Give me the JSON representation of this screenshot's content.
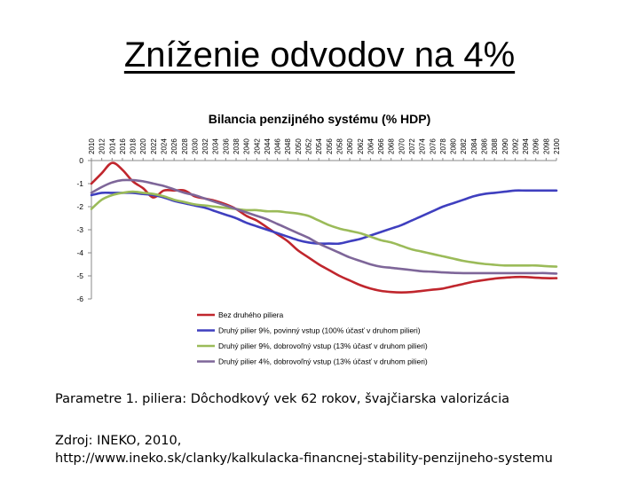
{
  "slide": {
    "title": "Zníženie odvodov na 4%",
    "caption1": "Parametre 1. piliera: Dôchodkový vek 62 rokov, švajčiarska valorizácia",
    "source_line1": "Zdroj: INEKO, 2010,",
    "source_line2": "http://www.ineko.sk/clanky/kalkulacka-financnej-stability-penzijneho-systemu"
  },
  "chart_data": {
    "type": "line",
    "title": "Bilancia penzijného systému (% HDP)",
    "xlabel": "",
    "ylabel": "",
    "x": [
      2010,
      2012,
      2014,
      2016,
      2018,
      2020,
      2022,
      2024,
      2026,
      2028,
      2030,
      2032,
      2034,
      2036,
      2038,
      2040,
      2042,
      2044,
      2046,
      2048,
      2050,
      2052,
      2054,
      2056,
      2058,
      2060,
      2062,
      2064,
      2066,
      2068,
      2070,
      2072,
      2074,
      2076,
      2078,
      2080,
      2082,
      2084,
      2086,
      2088,
      2090,
      2092,
      2094,
      2096,
      2098,
      2100
    ],
    "x_tick_labels": [
      "2010",
      "2012",
      "2014",
      "2016",
      "2018",
      "2020",
      "2022",
      "2024",
      "2026",
      "2028",
      "2030",
      "2032",
      "2034",
      "2036",
      "2038",
      "2040",
      "2042",
      "2044",
      "2046",
      "2048",
      "2050",
      "2052",
      "2054",
      "2056",
      "2058",
      "2060",
      "2062",
      "2064",
      "2066",
      "2068",
      "2070",
      "2072",
      "2074",
      "2076",
      "2078",
      "2080",
      "2082",
      "2084",
      "2086",
      "2088",
      "2090",
      "2092",
      "2094",
      "2096",
      "2098",
      "2100"
    ],
    "x_axis_position": "top",
    "ylim": [
      -6,
      0
    ],
    "y_ticks": [
      0,
      -1,
      -2,
      -3,
      -4,
      -5,
      -6
    ],
    "grid": false,
    "legend_position": "bottom",
    "series": [
      {
        "name": "Bez druhého piliera",
        "color": "#C0262D",
        "values": [
          -1.0,
          -0.55,
          -0.1,
          -0.4,
          -0.9,
          -1.2,
          -1.6,
          -1.3,
          -1.3,
          -1.3,
          -1.55,
          -1.65,
          -1.75,
          -1.9,
          -2.1,
          -2.4,
          -2.6,
          -2.9,
          -3.2,
          -3.5,
          -3.9,
          -4.2,
          -4.5,
          -4.75,
          -5.0,
          -5.2,
          -5.4,
          -5.55,
          -5.65,
          -5.7,
          -5.72,
          -5.7,
          -5.65,
          -5.6,
          -5.55,
          -5.45,
          -5.35,
          -5.25,
          -5.18,
          -5.12,
          -5.08,
          -5.05,
          -5.05,
          -5.08,
          -5.1,
          -5.1
        ]
      },
      {
        "name": "Druhý pilier 9%, povinný vstup (100% účasť v druhom pilieri)",
        "color": "#3F3FBF",
        "values": [
          -1.5,
          -1.4,
          -1.4,
          -1.4,
          -1.4,
          -1.45,
          -1.5,
          -1.6,
          -1.75,
          -1.85,
          -1.95,
          -2.05,
          -2.2,
          -2.35,
          -2.5,
          -2.7,
          -2.85,
          -3.0,
          -3.15,
          -3.3,
          -3.45,
          -3.55,
          -3.6,
          -3.6,
          -3.6,
          -3.5,
          -3.4,
          -3.25,
          -3.1,
          -2.95,
          -2.8,
          -2.6,
          -2.4,
          -2.2,
          -2.0,
          -1.85,
          -1.7,
          -1.55,
          -1.45,
          -1.4,
          -1.35,
          -1.3,
          -1.3,
          -1.3,
          -1.3,
          -1.3
        ]
      },
      {
        "name": "Druhý pilier 9%, dobrovoľný vstup (13% účasť v druhom pilieri)",
        "color": "#9BBB59",
        "values": [
          -2.1,
          -1.7,
          -1.5,
          -1.4,
          -1.35,
          -1.4,
          -1.45,
          -1.55,
          -1.7,
          -1.8,
          -1.9,
          -1.95,
          -2.0,
          -2.05,
          -2.1,
          -2.15,
          -2.15,
          -2.2,
          -2.2,
          -2.25,
          -2.3,
          -2.4,
          -2.6,
          -2.8,
          -2.95,
          -3.05,
          -3.15,
          -3.3,
          -3.45,
          -3.55,
          -3.7,
          -3.85,
          -3.95,
          -4.05,
          -4.15,
          -4.25,
          -4.35,
          -4.42,
          -4.48,
          -4.52,
          -4.55,
          -4.55,
          -4.55,
          -4.55,
          -4.58,
          -4.6
        ]
      },
      {
        "name": "Druhý pilier 4%, dobrovoľný vstup (13% účasť v druhom pilieri)",
        "color": "#7E6699",
        "values": [
          -1.4,
          -1.15,
          -0.95,
          -0.85,
          -0.85,
          -0.9,
          -1.0,
          -1.1,
          -1.25,
          -1.4,
          -1.5,
          -1.65,
          -1.8,
          -1.95,
          -2.1,
          -2.25,
          -2.4,
          -2.55,
          -2.75,
          -2.95,
          -3.15,
          -3.35,
          -3.6,
          -3.8,
          -4.0,
          -4.2,
          -4.35,
          -4.5,
          -4.6,
          -4.65,
          -4.7,
          -4.75,
          -4.8,
          -4.82,
          -4.85,
          -4.87,
          -4.88,
          -4.88,
          -4.88,
          -4.88,
          -4.88,
          -4.88,
          -4.88,
          -4.88,
          -4.88,
          -4.9
        ]
      }
    ]
  }
}
